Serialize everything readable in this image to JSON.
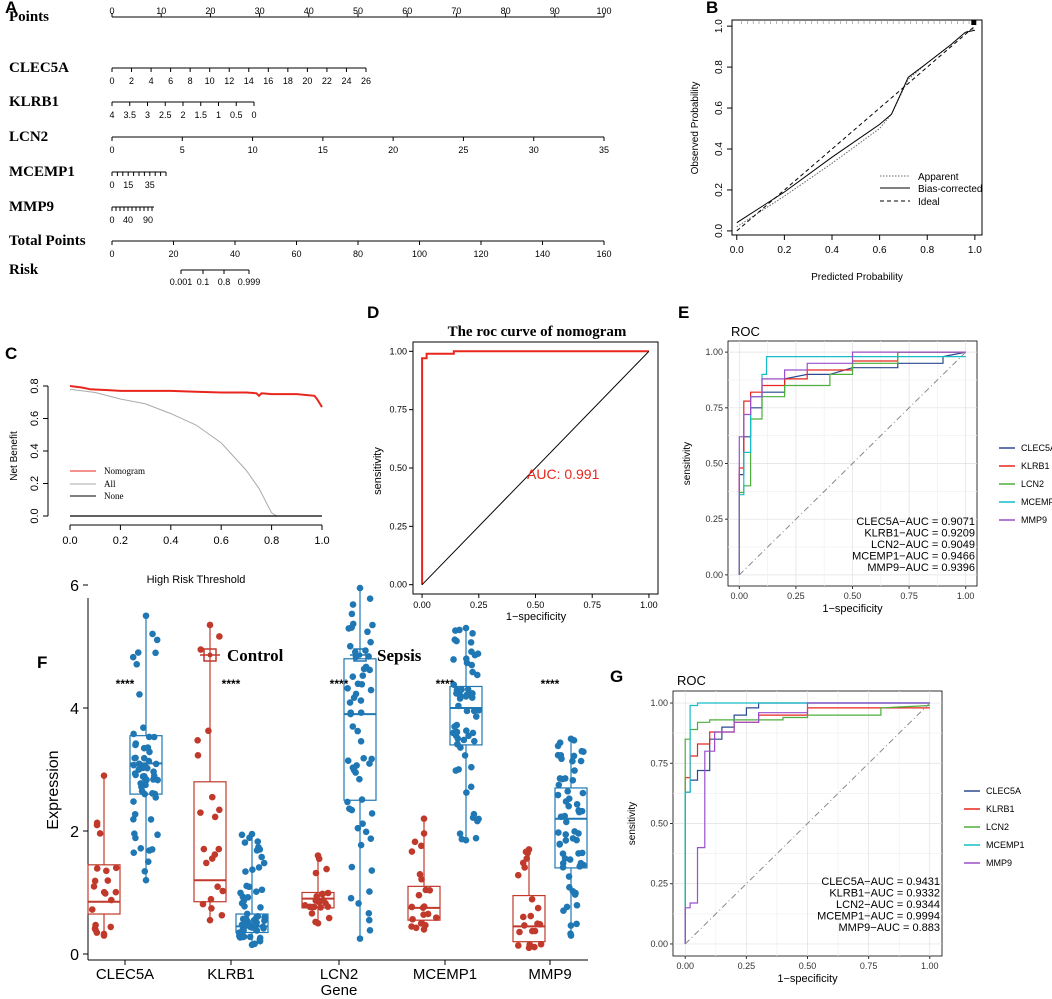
{
  "panel_labels": [
    "A",
    "B",
    "C",
    "D",
    "E",
    "F",
    "G"
  ],
  "chart_data": [
    {
      "id": "A",
      "type": "nomogram",
      "rows": [
        {
          "label": "Points",
          "min": 0,
          "max": 100,
          "ticks": [
            0,
            10,
            20,
            30,
            40,
            50,
            60,
            70,
            80,
            90,
            100
          ]
        },
        {
          "label": "CLEC5A",
          "min": 0,
          "max": 26,
          "ticks": [
            0,
            2,
            4,
            6,
            8,
            10,
            12,
            14,
            16,
            18,
            20,
            22,
            24,
            26
          ]
        },
        {
          "label": "KLRB1",
          "min": 0,
          "max": 4,
          "reversed": true,
          "tick_labels": [
            "4",
            "3.5",
            "3",
            "2.5",
            "2",
            "1.5",
            "1",
            "0.5",
            "0"
          ],
          "tick_values": [
            4,
            3.5,
            3,
            2.5,
            2,
            1.5,
            1,
            0.5,
            0
          ]
        },
        {
          "label": "LCN2",
          "min": 0,
          "max": 35,
          "ticks": [
            0,
            5,
            10,
            15,
            20,
            25,
            30,
            35
          ]
        },
        {
          "label": "MCEMP1",
          "min": 0,
          "max": 50,
          "ticks": [
            0,
            15,
            35
          ],
          "minor_step": 5
        },
        {
          "label": "MMP9",
          "min": 0,
          "max": 105,
          "ticks": [
            0,
            40,
            90
          ],
          "minor_step": 10
        },
        {
          "label": "Total Points",
          "min": 0,
          "max": 160,
          "ticks": [
            0,
            20,
            40,
            60,
            80,
            100,
            120,
            140,
            160
          ]
        },
        {
          "label": "Risk",
          "ticks_labels": [
            "0.001",
            "0.1",
            "0.8",
            "0.999"
          ]
        }
      ]
    },
    {
      "id": "B",
      "type": "line",
      "title": "",
      "xlabel": "Predicted Probability",
      "ylabel": "Observed Probability",
      "xlim": [
        0,
        1
      ],
      "ylim": [
        0,
        1
      ],
      "x_ticks": [
        "0.0",
        "0.2",
        "0.4",
        "0.6",
        "0.8",
        "1.0"
      ],
      "y_ticks": [
        "0.0",
        "0.2",
        "0.4",
        "0.6",
        "0.8",
        "1.0"
      ],
      "legend": [
        "Apparent",
        "Bias-corrected",
        "Ideal"
      ],
      "series": [
        {
          "name": "Apparent",
          "x": [
            0,
            0.2,
            0.4,
            0.6,
            0.65,
            0.72,
            0.8,
            0.9,
            0.96,
            1.0
          ],
          "y": [
            0.02,
            0.17,
            0.33,
            0.5,
            0.57,
            0.74,
            0.82,
            0.91,
            0.97,
            0.99
          ]
        },
        {
          "name": "Bias-corrected",
          "x": [
            0,
            0.2,
            0.4,
            0.6,
            0.65,
            0.72,
            0.8,
            0.9,
            0.96,
            1.0
          ],
          "y": [
            0.04,
            0.19,
            0.36,
            0.52,
            0.57,
            0.75,
            0.82,
            0.91,
            0.97,
            0.98
          ]
        },
        {
          "name": "Ideal",
          "x": [
            0,
            1
          ],
          "y": [
            0,
            1
          ]
        }
      ]
    },
    {
      "id": "C",
      "type": "line",
      "xlabel": "High Risk Threshold",
      "ylabel": "Net Benefit",
      "xlim": [
        0,
        1
      ],
      "ylim": [
        -0.05,
        0.85
      ],
      "x_ticks": [
        "0.0",
        "0.2",
        "0.4",
        "0.6",
        "0.8",
        "1.0"
      ],
      "y_ticks": [
        "0.0",
        "0.2",
        "0.4",
        "0.6",
        "0.8"
      ],
      "legend": [
        "Nomogram",
        "All",
        "None"
      ],
      "series": [
        {
          "name": "Nomogram",
          "x": [
            0,
            0.05,
            0.08,
            0.15,
            0.2,
            0.3,
            0.4,
            0.5,
            0.6,
            0.7,
            0.74,
            0.75,
            0.76,
            0.8,
            0.9,
            0.97,
            0.98,
            1.0
          ],
          "y": [
            0.8,
            0.79,
            0.78,
            0.775,
            0.77,
            0.77,
            0.77,
            0.765,
            0.76,
            0.76,
            0.755,
            0.74,
            0.755,
            0.75,
            0.75,
            0.74,
            0.72,
            0.67
          ]
        },
        {
          "name": "All",
          "x": [
            0,
            0.1,
            0.2,
            0.3,
            0.4,
            0.5,
            0.6,
            0.7,
            0.75,
            0.8,
            0.82
          ],
          "y": [
            0.78,
            0.76,
            0.72,
            0.69,
            0.63,
            0.56,
            0.45,
            0.28,
            0.17,
            0.02,
            0.0
          ]
        },
        {
          "name": "None",
          "x": [
            0,
            1
          ],
          "y": [
            0,
            0
          ]
        }
      ]
    },
    {
      "id": "D",
      "type": "line",
      "title": "The roc curve of nomogram",
      "xlabel": "1−specificity",
      "ylabel": "sensitivity",
      "xlim": [
        0,
        1
      ],
      "ylim": [
        0,
        1
      ],
      "x_ticks": [
        "0.00",
        "0.25",
        "0.50",
        "0.75",
        "1.00"
      ],
      "y_ticks": [
        "0.00",
        "0.25",
        "0.50",
        "0.75",
        "1.00"
      ],
      "annotation": "AUC: 0.991",
      "series": [
        {
          "name": "ROC",
          "x": [
            0,
            0,
            0.02,
            0.02,
            0.14,
            0.14,
            0.4,
            0.4,
            1.0
          ],
          "y": [
            0,
            0.97,
            0.97,
            0.99,
            0.99,
            1.0,
            1.0,
            1.0,
            1.0
          ]
        },
        {
          "name": "diagonal",
          "x": [
            0,
            1
          ],
          "y": [
            0,
            1
          ]
        }
      ]
    },
    {
      "id": "E",
      "type": "line",
      "title": "ROC",
      "xlabel": "1−specificity",
      "ylabel": "sensitivity",
      "xlim": [
        0,
        1
      ],
      "ylim": [
        0,
        1
      ],
      "x_ticks": [
        "0.00",
        "0.25",
        "0.50",
        "0.75",
        "1.00"
      ],
      "y_ticks": [
        "0.00",
        "0.25",
        "0.50",
        "0.75",
        "1.00"
      ],
      "legend": [
        "CLEC5A",
        "KLRB1",
        "LCN2",
        "MCEMP1",
        "MMP9"
      ],
      "auc_text": [
        "CLEC5A−AUC =  0.9071",
        "KLRB1−AUC =  0.9209",
        "LCN2−AUC =  0.9049",
        "MCEMP1−AUC =  0.9466",
        "MMP9−AUC =  0.9396"
      ],
      "series": [
        {
          "name": "CLEC5A",
          "x": [
            0,
            0,
            0.02,
            0.02,
            0.05,
            0.05,
            0.1,
            0.1,
            0.2,
            0.2,
            0.3,
            0.4,
            0.5,
            0.7,
            0.7,
            0.9,
            0.9,
            1
          ],
          "y": [
            0,
            0.45,
            0.45,
            0.62,
            0.62,
            0.75,
            0.75,
            0.82,
            0.82,
            0.88,
            0.9,
            0.9,
            0.93,
            0.93,
            0.95,
            0.95,
            0.98,
            1
          ]
        },
        {
          "name": "KLRB1",
          "x": [
            0,
            0,
            0.02,
            0.02,
            0.05,
            0.05,
            0.1,
            0.1,
            0.2,
            0.2,
            0.3,
            0.3,
            0.5,
            0.5,
            0.7,
            0.7,
            1
          ],
          "y": [
            0,
            0.48,
            0.48,
            0.78,
            0.78,
            0.82,
            0.82,
            0.85,
            0.85,
            0.88,
            0.88,
            0.92,
            0.92,
            0.96,
            0.96,
            1,
            1
          ]
        },
        {
          "name": "LCN2",
          "x": [
            0,
            0,
            0.02,
            0.02,
            0.05,
            0.05,
            0.1,
            0.1,
            0.2,
            0.2,
            0.3,
            0.4,
            0.4,
            0.5,
            0.5,
            0.7,
            0.7,
            1
          ],
          "y": [
            0,
            0.37,
            0.37,
            0.4,
            0.4,
            0.7,
            0.7,
            0.8,
            0.8,
            0.85,
            0.85,
            0.85,
            0.9,
            0.9,
            0.95,
            0.95,
            1,
            1
          ]
        },
        {
          "name": "MCEMP1",
          "x": [
            0,
            0,
            0.02,
            0.02,
            0.05,
            0.05,
            0.1,
            0.1,
            0.12,
            0.12,
            1
          ],
          "y": [
            0,
            0.36,
            0.36,
            0.55,
            0.55,
            0.8,
            0.8,
            0.9,
            0.9,
            0.98,
            0.98
          ]
        },
        {
          "name": "MMP9",
          "x": [
            0,
            0,
            0.02,
            0.02,
            0.05,
            0.05,
            0.1,
            0.1,
            0.2,
            0.2,
            0.3,
            0.3,
            0.5,
            0.5,
            1
          ],
          "y": [
            0,
            0.62,
            0.62,
            0.72,
            0.72,
            0.8,
            0.8,
            0.88,
            0.88,
            0.92,
            0.92,
            0.95,
            0.95,
            1,
            1
          ]
        },
        {
          "name": "diagonal",
          "x": [
            0,
            1
          ],
          "y": [
            0,
            1
          ]
        }
      ]
    },
    {
      "id": "F",
      "type": "box",
      "xlabel": "Gene",
      "ylabel": "Expression",
      "ylim": [
        0,
        6
      ],
      "y_ticks": [
        "0",
        "2",
        "4",
        "6"
      ],
      "categories": [
        "CLEC5A",
        "KLRB1",
        "LCN2",
        "MCEMP1",
        "MMP9"
      ],
      "significance": [
        "****",
        "****",
        "****",
        "****",
        "****"
      ],
      "legend": [
        "Control",
        "Sepsis"
      ],
      "series": [
        {
          "name": "Control",
          "color": "#c0392b",
          "boxes": [
            {
              "min": 0.3,
              "q1": 0.65,
              "median": 0.85,
              "q3": 1.45,
              "max": 2.9
            },
            {
              "min": 0.55,
              "q1": 0.85,
              "median": 1.2,
              "q3": 2.8,
              "max": 5.35
            },
            {
              "min": 0.5,
              "q1": 0.75,
              "median": 0.9,
              "q3": 1.0,
              "max": 1.6
            },
            {
              "min": 0.4,
              "q1": 0.55,
              "median": 0.75,
              "q3": 1.1,
              "max": 2.2
            },
            {
              "min": 0.1,
              "q1": 0.2,
              "median": 0.45,
              "q3": 0.95,
              "max": 1.7
            }
          ]
        },
        {
          "name": "Sepsis",
          "color": "#1f77b4",
          "boxes": [
            {
              "min": 1.2,
              "q1": 2.6,
              "median": 3.1,
              "q3": 3.55,
              "max": 5.5
            },
            {
              "min": 0.15,
              "q1": 0.35,
              "median": 0.45,
              "q3": 0.65,
              "max": 1.95
            },
            {
              "min": 0.25,
              "q1": 2.5,
              "median": 3.9,
              "q3": 4.8,
              "max": 5.95
            },
            {
              "min": 1.85,
              "q1": 3.4,
              "median": 4.0,
              "q3": 4.35,
              "max": 5.3
            },
            {
              "min": 0.3,
              "q1": 1.4,
              "median": 2.2,
              "q3": 2.7,
              "max": 3.5
            }
          ]
        }
      ]
    },
    {
      "id": "G",
      "type": "line",
      "title": "ROC",
      "xlabel": "1−specificity",
      "ylabel": "sensitivity",
      "xlim": [
        0,
        1
      ],
      "ylim": [
        0,
        1
      ],
      "x_ticks": [
        "0.00",
        "0.25",
        "0.50",
        "0.75",
        "1.00"
      ],
      "y_ticks": [
        "0.00",
        "0.25",
        "0.50",
        "0.75",
        "1.00"
      ],
      "legend": [
        "CLEC5A",
        "KLRB1",
        "LCN2",
        "MCEMP1",
        "MMP9"
      ],
      "auc_text": [
        "CLEC5A−AUC =  0.9431",
        "KLRB1−AUC =  0.9332",
        "LCN2−AUC =  0.9344",
        "MCEMP1−AUC =  0.9994",
        "MMP9−AUC =  0.883"
      ],
      "series": [
        {
          "name": "CLEC5A",
          "x": [
            0,
            0,
            0.02,
            0.02,
            0.05,
            0.05,
            0.1,
            0.1,
            0.15,
            0.15,
            0.2,
            0.2,
            0.25,
            0.25,
            0.3,
            0.3,
            1
          ],
          "y": [
            0,
            0.63,
            0.63,
            0.68,
            0.68,
            0.72,
            0.72,
            0.85,
            0.85,
            0.9,
            0.9,
            0.95,
            0.95,
            0.98,
            0.98,
            1,
            1
          ]
        },
        {
          "name": "KLRB1",
          "x": [
            0,
            0,
            0.02,
            0.02,
            0.05,
            0.05,
            0.1,
            0.1,
            0.2,
            0.2,
            0.3,
            0.3,
            0.5,
            0.5,
            1
          ],
          "y": [
            0,
            0.69,
            0.69,
            0.78,
            0.78,
            0.83,
            0.83,
            0.88,
            0.88,
            0.92,
            0.92,
            0.95,
            0.95,
            0.98,
            0.98
          ]
        },
        {
          "name": "LCN2",
          "x": [
            0,
            0,
            0.02,
            0.02,
            0.05,
            0.05,
            0.1,
            0.1,
            0.4,
            0.4,
            0.5,
            0.5,
            0.8,
            0.8,
            1
          ],
          "y": [
            0,
            0.85,
            0.85,
            0.89,
            0.89,
            0.92,
            0.92,
            0.93,
            0.93,
            0.94,
            0.94,
            0.95,
            0.95,
            0.98,
            0.99
          ]
        },
        {
          "name": "MCEMP1",
          "x": [
            0,
            0,
            0.02,
            0.02,
            0.05,
            0.05,
            1
          ],
          "y": [
            0,
            0.63,
            0.63,
            0.99,
            0.99,
            1,
            1
          ]
        },
        {
          "name": "MMP9",
          "x": [
            0,
            0,
            0.02,
            0.02,
            0.05,
            0.05,
            0.08,
            0.08,
            0.12,
            0.12,
            0.2,
            0.2,
            0.3,
            0.3,
            0.5,
            0.5,
            1
          ],
          "y": [
            0,
            0.15,
            0.15,
            0.17,
            0.17,
            0.4,
            0.4,
            0.8,
            0.8,
            0.88,
            0.88,
            0.92,
            0.92,
            0.96,
            0.96,
            1,
            1
          ]
        },
        {
          "name": "diagonal",
          "x": [
            0,
            1
          ],
          "y": [
            0,
            1
          ]
        }
      ]
    }
  ]
}
